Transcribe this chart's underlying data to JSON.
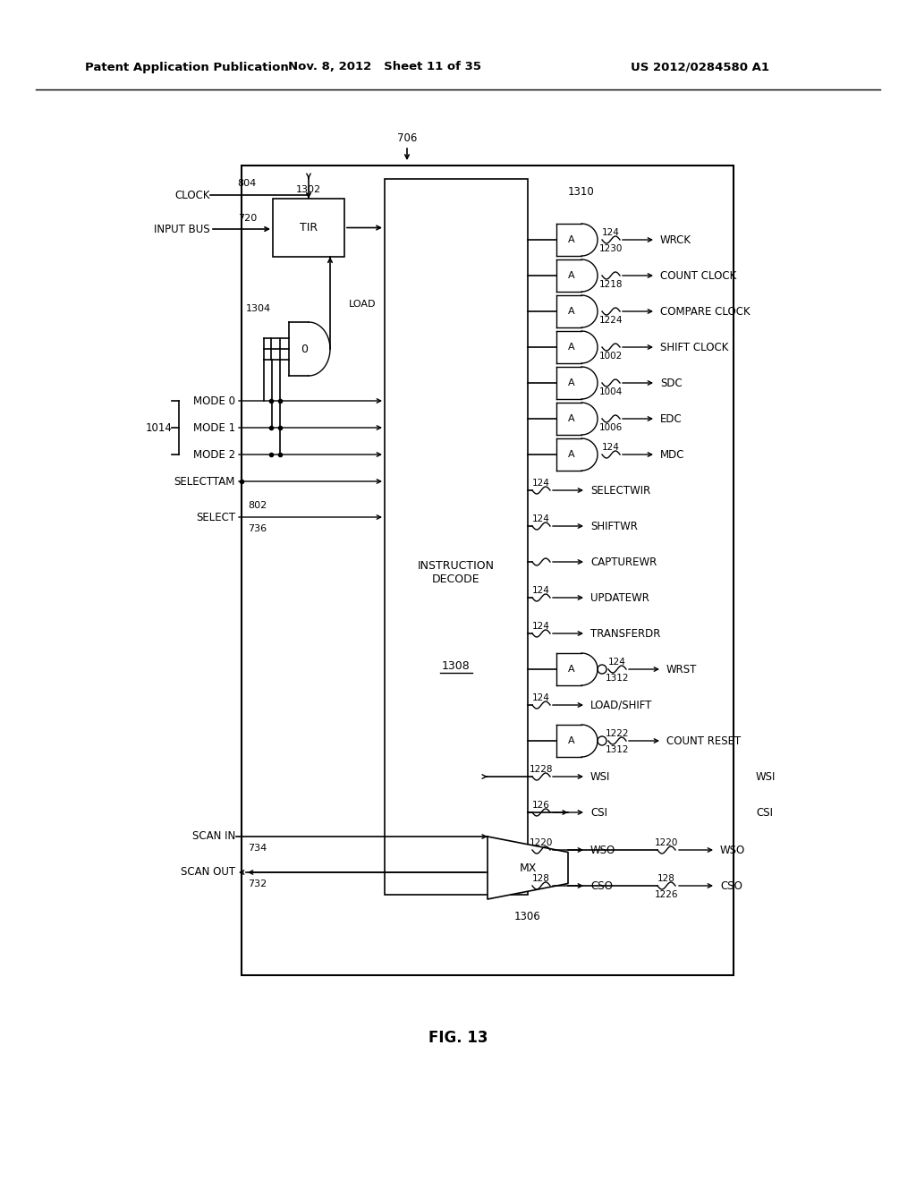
{
  "header_left": "Patent Application Publication",
  "header_mid": "Nov. 8, 2012   Sheet 11 of 35",
  "header_right": "US 2012/0284580 A1",
  "fig_label": "FIG. 13",
  "bg_color": "#ffffff"
}
